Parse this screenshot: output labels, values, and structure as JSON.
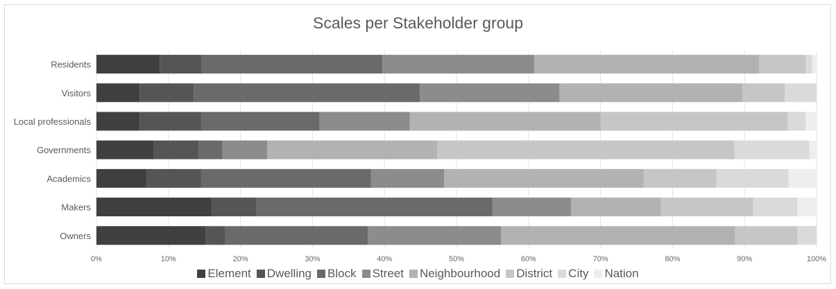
{
  "chart_data": {
    "type": "bar",
    "orientation": "horizontal",
    "stacked": true,
    "title": "Scales per Stakeholder group",
    "xlabel": "",
    "ylabel": "",
    "xlim": [
      0,
      100
    ],
    "x_ticks": [
      "0%",
      "10%",
      "20%",
      "30%",
      "40%",
      "50%",
      "60%",
      "70%",
      "80%",
      "90%",
      "100%"
    ],
    "grid": true,
    "legend_position": "bottom",
    "categories": [
      "Residents",
      "Visitors",
      "Local professionals",
      "Governments",
      "Academics",
      "Makers",
      "Owners"
    ],
    "series": [
      {
        "name": "Element",
        "color": "#404040",
        "values": [
          8.8,
          6.0,
          6.0,
          7.9,
          7.0,
          16.0,
          15.2
        ]
      },
      {
        "name": "Dwelling",
        "color": "#555555",
        "values": [
          5.8,
          7.5,
          8.5,
          6.3,
          7.5,
          6.2,
          2.7
        ]
      },
      {
        "name": "Block",
        "color": "#6a6a6a",
        "values": [
          25.1,
          31.4,
          16.5,
          3.3,
          23.6,
          32.8,
          19.8
        ]
      },
      {
        "name": "Street",
        "color": "#8c8c8c",
        "values": [
          21.1,
          19.4,
          12.5,
          6.2,
          10.2,
          10.9,
          18.5
        ]
      },
      {
        "name": "Neighbourhood",
        "color": "#b2b2b2",
        "values": [
          31.2,
          25.4,
          26.5,
          23.6,
          27.7,
          12.5,
          32.5
        ]
      },
      {
        "name": "District",
        "color": "#c6c6c6",
        "values": [
          6.5,
          5.9,
          26.0,
          41.3,
          10.1,
          12.8,
          8.6
        ]
      },
      {
        "name": "City",
        "color": "#dadada",
        "values": [
          0.9,
          4.4,
          2.5,
          10.4,
          10.0,
          6.1,
          2.7
        ]
      },
      {
        "name": "Nation",
        "color": "#eeeeee",
        "values": [
          0.6,
          0.0,
          1.5,
          1.0,
          3.9,
          2.7,
          0.0
        ]
      }
    ]
  }
}
